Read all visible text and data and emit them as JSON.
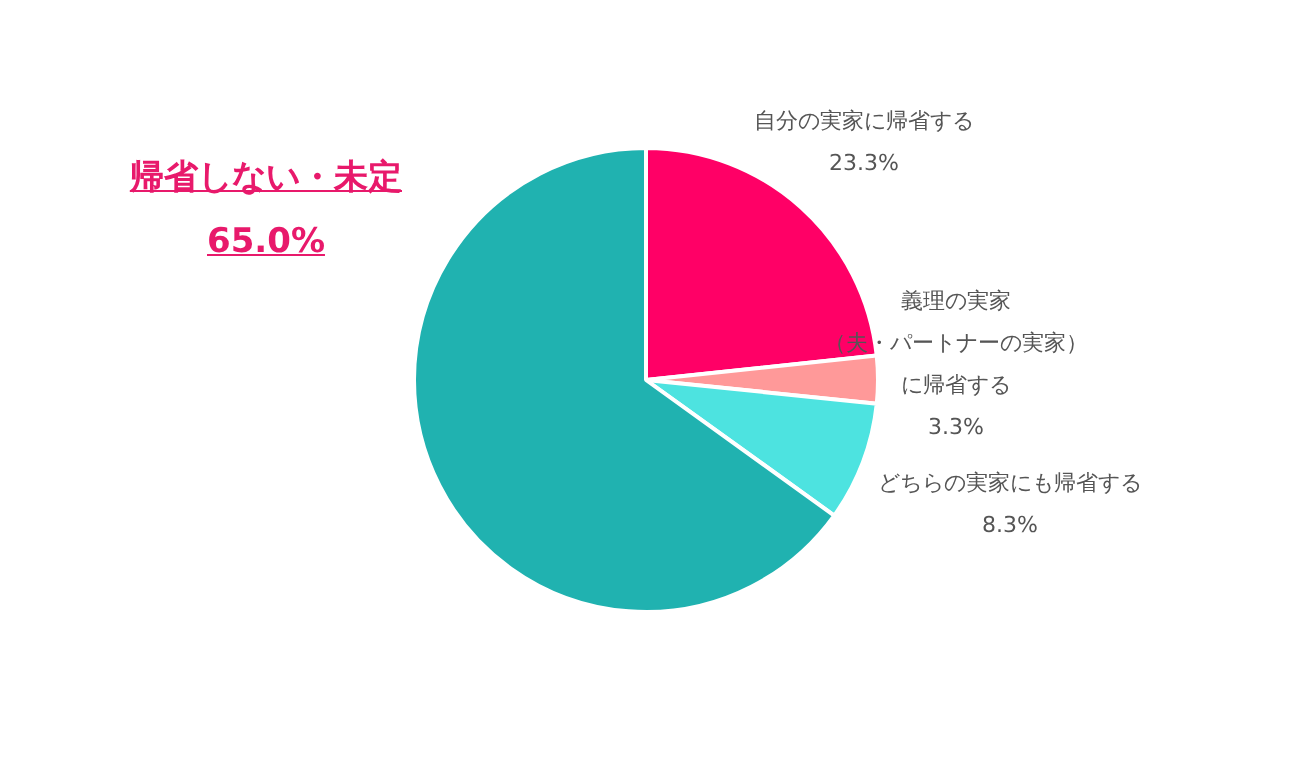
{
  "chart_data": {
    "type": "pie",
    "categories": [
      "自分の実家に帰省する",
      "義理の実家（夫・パートナーの実家）に帰省する",
      "どちらの実家にも帰省する",
      "帰省しない・未定"
    ],
    "values": [
      23.3,
      3.3,
      8.3,
      65.0
    ],
    "colors": [
      "#ff0066",
      "#ff9999",
      "#4de3e0",
      "#20b2b0"
    ],
    "value_labels": [
      "23.3%",
      "3.3%",
      "8.3%",
      "65.0%"
    ]
  }
}
